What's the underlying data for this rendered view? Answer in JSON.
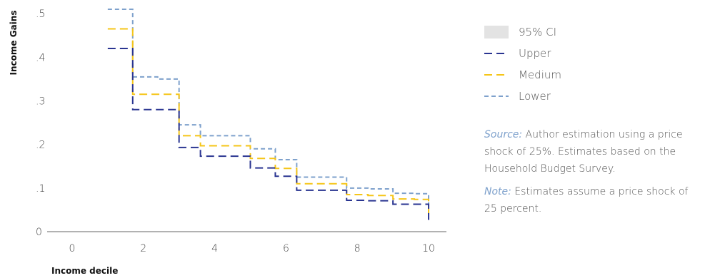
{
  "colors": {
    "upper": "#2a3591",
    "medium": "#f5c518",
    "lower": "#7ea1cc",
    "ci": "#e3e3e3",
    "axis": "#999999"
  },
  "legend": [
    {
      "key": "ci",
      "label": "95% CI"
    },
    {
      "key": "upper",
      "label": "Upper"
    },
    {
      "key": "medium",
      "label": "Medium"
    },
    {
      "key": "lower",
      "label": "Lower"
    }
  ],
  "notes": {
    "source_key": "Source:",
    "source_text": " Author estimation using a price shock of 25%. Estimates based on the Household Budget Survey.",
    "note_key": "Note:",
    "note_text": " Estimates assume a price shock of 25 percent."
  },
  "chart_data": {
    "type": "line",
    "xlabel": "Income decile",
    "ylabel": "Income Gains",
    "xlim": [
      -0.7,
      10.5
    ],
    "ylim": [
      0,
      0.51
    ],
    "xticks": [
      0,
      2,
      4,
      6,
      8,
      10
    ],
    "xtick_labels": [
      "0",
      "2",
      "4",
      "6",
      "8",
      "10"
    ],
    "yticks": [
      0,
      0.1,
      0.2,
      0.3,
      0.4,
      0.5
    ],
    "ytick_labels": [
      "0",
      ".1",
      ".2",
      ".3",
      ".4",
      ".5"
    ],
    "step": true,
    "x": [
      1,
      1.7,
      2.4,
      3,
      3.6,
      4.3,
      5,
      5.7,
      6.3,
      7,
      7.7,
      8.3,
      9,
      9.6,
      10
    ],
    "series": [
      {
        "name": "Lower",
        "color_key": "lower",
        "values": [
          0.51,
          0.355,
          0.35,
          0.245,
          0.22,
          0.22,
          0.19,
          0.165,
          0.125,
          0.125,
          0.1,
          0.098,
          0.088,
          0.087,
          0.047
        ]
      },
      {
        "name": "Medium",
        "color_key": "medium",
        "values": [
          0.465,
          0.315,
          0.315,
          0.22,
          0.197,
          0.197,
          0.168,
          0.145,
          0.11,
          0.11,
          0.085,
          0.083,
          0.075,
          0.074,
          0.038
        ]
      },
      {
        "name": "Upper",
        "color_key": "upper",
        "values": [
          0.42,
          0.28,
          0.28,
          0.193,
          0.173,
          0.173,
          0.146,
          0.127,
          0.095,
          0.095,
          0.072,
          0.071,
          0.063,
          0.063,
          0.027
        ]
      }
    ]
  }
}
